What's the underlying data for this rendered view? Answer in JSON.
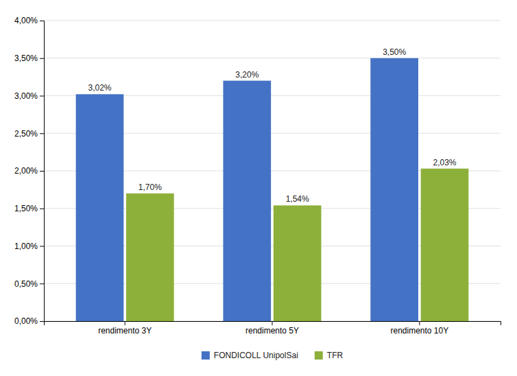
{
  "chart_data": {
    "type": "bar",
    "categories": [
      "rendimento 3Y",
      "rendimento 5Y",
      "rendimento 10Y"
    ],
    "series": [
      {
        "name": "FONDICOLL UnipolSai",
        "color": "#4472C4",
        "values": [
          0.0302,
          0.032,
          0.035
        ],
        "value_labels": [
          "3,02%",
          "3,20%",
          "3,50%"
        ]
      },
      {
        "name": "TFR",
        "color": "#8DB03B",
        "values": [
          0.017,
          0.0154,
          0.0203
        ],
        "value_labels": [
          "1,70%",
          "1,54%",
          "2,03%"
        ]
      }
    ],
    "ylim": [
      0,
      0.04
    ],
    "yticks": [
      {
        "value": 0.0,
        "label": "0,00%"
      },
      {
        "value": 0.005,
        "label": "0,50%"
      },
      {
        "value": 0.01,
        "label": "1,00%"
      },
      {
        "value": 0.015,
        "label": "1,50%"
      },
      {
        "value": 0.02,
        "label": "2,00%"
      },
      {
        "value": 0.025,
        "label": "2,50%"
      },
      {
        "value": 0.03,
        "label": "3,00%"
      },
      {
        "value": 0.035,
        "label": "3,50%"
      },
      {
        "value": 0.04,
        "label": "4,00%"
      }
    ],
    "grid": true,
    "legend": "bottom",
    "data_labels": true
  }
}
